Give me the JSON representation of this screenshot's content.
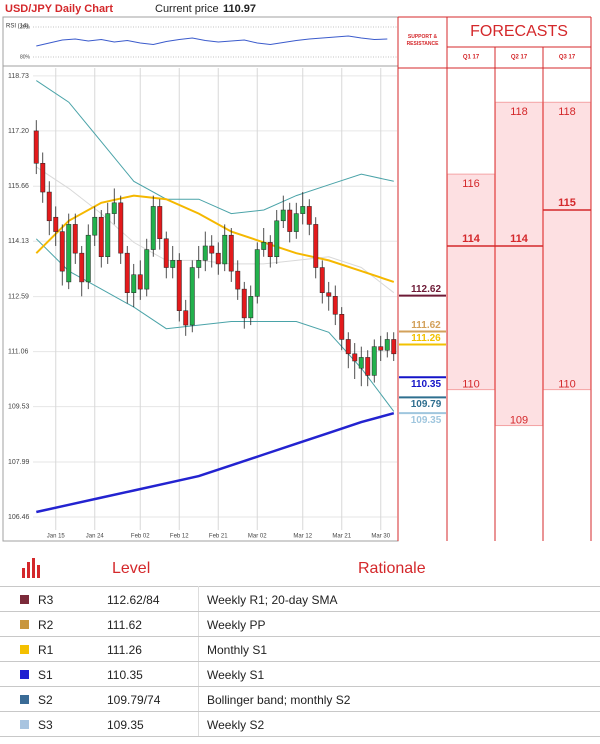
{
  "header": {
    "title": "USD/JPY Daily Chart",
    "current_price_label": "Current price",
    "current_price": 110.97
  },
  "rsi": {
    "type": "line",
    "label": "RSI (14)",
    "color": "#3b5bcc",
    "ylim": [
      90,
      10
    ],
    "yticks": [
      {
        "value": 20,
        "label": "20%"
      },
      {
        "value": 80,
        "label": "80%"
      }
    ],
    "x": [
      0,
      2,
      4,
      6,
      8,
      10,
      12,
      14,
      16,
      18,
      20,
      22,
      24,
      26,
      28,
      30,
      32,
      34,
      36,
      38,
      40,
      42,
      44,
      46,
      48,
      50,
      52,
      54
    ],
    "values": [
      58,
      52,
      46,
      44,
      48,
      45,
      50,
      47,
      52,
      55,
      49,
      45,
      42,
      47,
      50,
      48,
      46,
      52,
      55,
      51,
      47,
      44,
      42,
      40,
      38,
      42,
      45,
      44
    ]
  },
  "chart_data": {
    "type": "candlestick",
    "up_color": "#22b14c",
    "down_color": "#e31a1c",
    "grid": true,
    "ylim": [
      106.1,
      118.95
    ],
    "yticks": [
      118.73,
      {
        "value": 117.2,
        "label": "117.20"
      },
      115.66,
      114.13,
      112.59,
      111.06,
      109.53,
      107.99,
      106.46
    ],
    "categories": [
      null,
      null,
      null,
      "Jan 15",
      null,
      null,
      null,
      null,
      null,
      "Jan 24",
      null,
      null,
      null,
      null,
      null,
      null,
      "Feb 02",
      null,
      null,
      null,
      null,
      null,
      "Feb 12",
      null,
      null,
      null,
      null,
      null,
      "Feb 21",
      null,
      null,
      null,
      null,
      null,
      "Mar 02",
      null,
      null,
      null,
      null,
      null,
      null,
      "Mar 12",
      null,
      null,
      null,
      null,
      null,
      "Mar 21",
      null,
      null,
      null,
      null,
      null,
      "Mar 30",
      null,
      null
    ],
    "open": [
      117.2,
      116.3,
      115.5,
      114.8,
      114.4,
      113.0,
      114.6,
      113.8,
      113.0,
      114.3,
      114.8,
      113.7,
      114.9,
      115.2,
      113.8,
      112.7,
      113.2,
      112.8,
      113.9,
      115.1,
      114.2,
      113.4,
      113.6,
      112.2,
      111.8,
      113.4,
      113.6,
      114.0,
      113.8,
      113.5,
      114.3,
      113.3,
      112.8,
      112.0,
      112.6,
      113.9,
      114.1,
      113.7,
      114.7,
      115.0,
      114.4,
      114.9,
      115.1,
      114.6,
      113.4,
      112.7,
      112.6,
      112.1,
      111.4,
      111.0,
      110.6,
      110.9,
      110.4,
      111.2,
      111.1,
      111.4
    ],
    "high": [
      117.5,
      116.6,
      115.8,
      115.1,
      114.6,
      114.9,
      114.9,
      114.0,
      114.6,
      115.1,
      115.0,
      115.2,
      115.6,
      115.4,
      114.0,
      113.5,
      113.6,
      114.2,
      115.4,
      115.3,
      114.4,
      114.0,
      113.8,
      112.5,
      113.6,
      114.0,
      114.4,
      114.3,
      114.1,
      114.6,
      114.5,
      113.6,
      113.0,
      112.9,
      114.1,
      114.5,
      114.3,
      115.0,
      115.4,
      115.2,
      115.2,
      115.5,
      115.3,
      114.8,
      113.6,
      113.0,
      112.9,
      112.3,
      111.6,
      111.3,
      111.2,
      111.1,
      111.4,
      111.5,
      111.6,
      111.6
    ],
    "low": [
      116.0,
      115.2,
      114.3,
      114.0,
      112.9,
      112.8,
      113.5,
      112.6,
      112.8,
      114.0,
      113.4,
      113.5,
      114.6,
      113.5,
      112.4,
      112.3,
      112.5,
      112.6,
      113.7,
      113.9,
      113.1,
      113.1,
      111.9,
      111.5,
      111.6,
      113.1,
      113.3,
      113.4,
      113.2,
      113.3,
      113.0,
      112.5,
      111.7,
      111.8,
      112.4,
      113.7,
      113.4,
      113.5,
      114.5,
      114.1,
      114.2,
      114.6,
      114.3,
      113.1,
      112.4,
      112.2,
      111.8,
      111.1,
      110.6,
      110.3,
      110.1,
      110.1,
      110.2,
      110.8,
      110.9,
      110.8
    ],
    "close": [
      116.3,
      115.5,
      114.7,
      114.4,
      113.3,
      114.6,
      113.8,
      113.0,
      114.3,
      114.8,
      113.7,
      114.9,
      115.2,
      113.8,
      112.7,
      113.2,
      112.8,
      113.9,
      115.1,
      114.2,
      113.4,
      113.6,
      112.2,
      111.8,
      113.4,
      113.6,
      114.0,
      113.8,
      113.5,
      114.3,
      113.3,
      112.8,
      112.0,
      112.6,
      113.9,
      114.1,
      113.7,
      114.7,
      115.0,
      114.4,
      114.9,
      115.1,
      114.6,
      113.4,
      112.7,
      112.6,
      112.1,
      111.4,
      111.0,
      110.8,
      110.9,
      110.4,
      111.2,
      111.1,
      111.4,
      111.0
    ],
    "lines": [
      {
        "color": "#d9d9d9",
        "width": 1,
        "x": [
          0,
          5,
          10,
          15,
          20,
          25,
          30,
          35,
          40,
          45,
          50,
          55
        ],
        "values": [
          116.2,
          115.6,
          114.9,
          114.1,
          113.6,
          113.6,
          113.5,
          113.5,
          113.6,
          113.7,
          113.4,
          112.7
        ]
      },
      {
        "color": "#4aa3a8",
        "width": 1,
        "x": [
          0,
          5,
          10,
          15,
          20,
          25,
          30,
          35,
          40,
          45,
          50,
          55
        ],
        "values": [
          118.6,
          118.0,
          116.9,
          115.8,
          115.3,
          115.3,
          114.9,
          115.0,
          115.4,
          115.7,
          116.0,
          115.8
        ]
      },
      {
        "color": "#4aa3a8",
        "width": 1,
        "x": [
          0,
          5,
          10,
          15,
          20,
          25,
          30,
          35,
          40,
          45,
          50,
          55
        ],
        "values": [
          114.2,
          113.3,
          112.8,
          112.3,
          111.7,
          111.8,
          111.9,
          111.9,
          111.9,
          111.6,
          110.6,
          109.4
        ]
      },
      {
        "color": "#f5b800",
        "width": 2,
        "x": [
          0,
          5,
          10,
          15,
          20,
          25,
          30,
          35,
          40,
          45,
          50,
          55
        ],
        "values": [
          113.8,
          114.7,
          115.2,
          115.4,
          115.3,
          114.9,
          114.4,
          114.1,
          113.8,
          113.6,
          113.3,
          113.0
        ]
      },
      {
        "color": "#2323d0",
        "width": 2.5,
        "x": [
          0,
          5,
          10,
          15,
          20,
          25,
          30,
          35,
          40,
          45,
          50,
          55
        ],
        "values": [
          106.6,
          106.8,
          107.0,
          107.2,
          107.4,
          107.6,
          107.9,
          108.2,
          108.5,
          108.8,
          109.1,
          109.35
        ]
      }
    ]
  },
  "levels": {
    "title": "SUPPORT & RESISTANCE",
    "items": [
      {
        "value": 112.62,
        "color": "#6d1a36"
      },
      {
        "value": 111.62,
        "color": "#d3a15a"
      },
      {
        "value": 111.26,
        "color": "#f2c200"
      },
      {
        "value": 110.35,
        "color": "#1414c8"
      },
      {
        "value": 109.79,
        "color": "#2f6f8f"
      },
      {
        "value": 109.35,
        "color": "#9fc6de"
      }
    ]
  },
  "forecasts": {
    "title": "FORECASTS",
    "color": "#fde0e2",
    "columns": [
      {
        "label": "Q1 17",
        "high": 116,
        "mid": 114,
        "low": 110
      },
      {
        "label": "Q2 17",
        "high": 118,
        "mid": 114,
        "low": 109
      },
      {
        "label": "Q3 17",
        "high": 118,
        "mid": 115,
        "low": 110
      }
    ]
  },
  "table": {
    "headers": [
      "Level",
      "Rationale"
    ],
    "rows": [
      {
        "id": "R3",
        "level": "112.62/84",
        "rationale": "Weekly R1; 20-day SMA",
        "color": "#7b2a3a"
      },
      {
        "id": "R2",
        "level": "111.62",
        "rationale": "Weekly PP",
        "color": "#c8963e"
      },
      {
        "id": "R1",
        "level": "111.26",
        "rationale": "Monthly S1",
        "color": "#f4c000"
      },
      {
        "id": "S1",
        "level": "110.35",
        "rationale": "Weekly S1",
        "color": "#1f1fd0"
      },
      {
        "id": "S2",
        "level": "109.79/74",
        "rationale": "Bollinger band; monthly S2",
        "color": "#3a6b96"
      },
      {
        "id": "S3",
        "level": "109.35",
        "rationale": "Weekly S2",
        "color": "#a8c4e0"
      }
    ]
  }
}
